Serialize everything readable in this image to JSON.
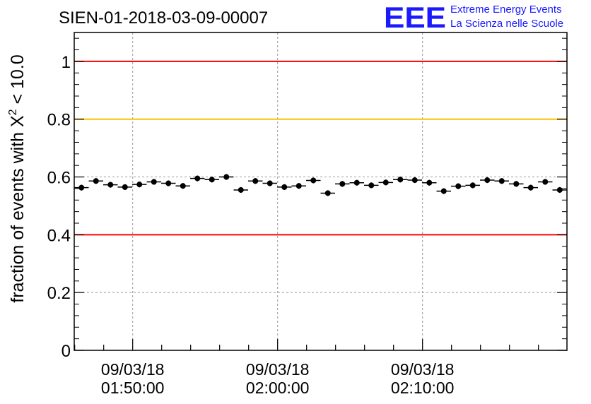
{
  "logo": {
    "mark": "EEE",
    "line1": "Extreme Energy Events",
    "line2": "La Scienza nelle Scuole",
    "color": "#1a1aff"
  },
  "chart_data": {
    "type": "scatter",
    "title": "SIEN-01-2018-03-09-00007",
    "ylabel_prefix": "fraction of events with ",
    "ylabel_symbol": "X",
    "ylabel_sup": "2",
    "ylabel_suffix": " < 10.0",
    "xlabel": "",
    "xlim": [
      "2018-03-09 01:45:58",
      "2018-03-09 02:19:58"
    ],
    "ylim": [
      0,
      1.1
    ],
    "grid": true,
    "error_bars": true,
    "x_ticks": [
      {
        "time": "2018-03-09 01:50:00",
        "date_label": "09/03/18",
        "time_label": "01:50:00"
      },
      {
        "time": "2018-03-09 02:00:00",
        "date_label": "09/03/18",
        "time_label": "02:00:00"
      },
      {
        "time": "2018-03-09 02:10:00",
        "date_label": "09/03/18",
        "time_label": "02:10:00"
      }
    ],
    "y_ticks": [
      {
        "value": 0,
        "label": "0"
      },
      {
        "value": 0.2,
        "label": "0.2"
      },
      {
        "value": 0.4,
        "label": "0.4"
      },
      {
        "value": 0.6,
        "label": "0.6"
      },
      {
        "value": 0.8,
        "label": "0.8"
      },
      {
        "value": 1,
        "label": "1"
      }
    ],
    "reference_lines": [
      {
        "y": 1.0,
        "color": "#ff0000"
      },
      {
        "y": 0.8,
        "color": "#ffc000"
      },
      {
        "y": 0.4,
        "color": "#ff0000"
      }
    ],
    "marker_color": "#000000",
    "points": [
      {
        "x": "2018-03-09 01:46:28",
        "y": 0.563,
        "xerr_s": 30,
        "yerr": 0.01
      },
      {
        "x": "2018-03-09 01:47:28",
        "y": 0.586,
        "xerr_s": 30,
        "yerr": 0.01
      },
      {
        "x": "2018-03-09 01:48:28",
        "y": 0.573,
        "xerr_s": 30,
        "yerr": 0.01
      },
      {
        "x": "2018-03-09 01:49:28",
        "y": 0.565,
        "xerr_s": 30,
        "yerr": 0.01
      },
      {
        "x": "2018-03-09 01:50:28",
        "y": 0.574,
        "xerr_s": 30,
        "yerr": 0.01
      },
      {
        "x": "2018-03-09 01:51:28",
        "y": 0.583,
        "xerr_s": 30,
        "yerr": 0.01
      },
      {
        "x": "2018-03-09 01:52:28",
        "y": 0.578,
        "xerr_s": 30,
        "yerr": 0.01
      },
      {
        "x": "2018-03-09 01:53:28",
        "y": 0.569,
        "xerr_s": 30,
        "yerr": 0.01
      },
      {
        "x": "2018-03-09 01:54:28",
        "y": 0.595,
        "xerr_s": 30,
        "yerr": 0.01
      },
      {
        "x": "2018-03-09 01:55:28",
        "y": 0.591,
        "xerr_s": 30,
        "yerr": 0.01
      },
      {
        "x": "2018-03-09 01:56:28",
        "y": 0.6,
        "xerr_s": 30,
        "yerr": 0.01
      },
      {
        "x": "2018-03-09 01:57:28",
        "y": 0.555,
        "xerr_s": 30,
        "yerr": 0.01
      },
      {
        "x": "2018-03-09 01:58:28",
        "y": 0.586,
        "xerr_s": 30,
        "yerr": 0.01
      },
      {
        "x": "2018-03-09 01:59:28",
        "y": 0.578,
        "xerr_s": 30,
        "yerr": 0.01
      },
      {
        "x": "2018-03-09 02:00:28",
        "y": 0.565,
        "xerr_s": 30,
        "yerr": 0.01
      },
      {
        "x": "2018-03-09 02:01:28",
        "y": 0.569,
        "xerr_s": 30,
        "yerr": 0.01
      },
      {
        "x": "2018-03-09 02:02:28",
        "y": 0.588,
        "xerr_s": 30,
        "yerr": 0.01
      },
      {
        "x": "2018-03-09 02:03:28",
        "y": 0.544,
        "xerr_s": 30,
        "yerr": 0.01
      },
      {
        "x": "2018-03-09 02:04:28",
        "y": 0.576,
        "xerr_s": 30,
        "yerr": 0.01
      },
      {
        "x": "2018-03-09 02:05:28",
        "y": 0.58,
        "xerr_s": 30,
        "yerr": 0.01
      },
      {
        "x": "2018-03-09 02:06:28",
        "y": 0.571,
        "xerr_s": 30,
        "yerr": 0.01
      },
      {
        "x": "2018-03-09 02:07:28",
        "y": 0.581,
        "xerr_s": 30,
        "yerr": 0.01
      },
      {
        "x": "2018-03-09 02:08:28",
        "y": 0.591,
        "xerr_s": 30,
        "yerr": 0.01
      },
      {
        "x": "2018-03-09 02:09:28",
        "y": 0.589,
        "xerr_s": 30,
        "yerr": 0.01
      },
      {
        "x": "2018-03-09 02:10:28",
        "y": 0.58,
        "xerr_s": 30,
        "yerr": 0.01
      },
      {
        "x": "2018-03-09 02:11:28",
        "y": 0.551,
        "xerr_s": 30,
        "yerr": 0.01
      },
      {
        "x": "2018-03-09 02:12:28",
        "y": 0.568,
        "xerr_s": 30,
        "yerr": 0.01
      },
      {
        "x": "2018-03-09 02:13:28",
        "y": 0.571,
        "xerr_s": 30,
        "yerr": 0.01
      },
      {
        "x": "2018-03-09 02:14:28",
        "y": 0.589,
        "xerr_s": 30,
        "yerr": 0.01
      },
      {
        "x": "2018-03-09 02:15:28",
        "y": 0.586,
        "xerr_s": 30,
        "yerr": 0.01
      },
      {
        "x": "2018-03-09 02:16:28",
        "y": 0.576,
        "xerr_s": 30,
        "yerr": 0.01
      },
      {
        "x": "2018-03-09 02:17:28",
        "y": 0.563,
        "xerr_s": 30,
        "yerr": 0.01
      },
      {
        "x": "2018-03-09 02:18:28",
        "y": 0.583,
        "xerr_s": 30,
        "yerr": 0.01
      },
      {
        "x": "2018-03-09 02:19:28",
        "y": 0.555,
        "xerr_s": 30,
        "yerr": 0.01
      }
    ]
  }
}
